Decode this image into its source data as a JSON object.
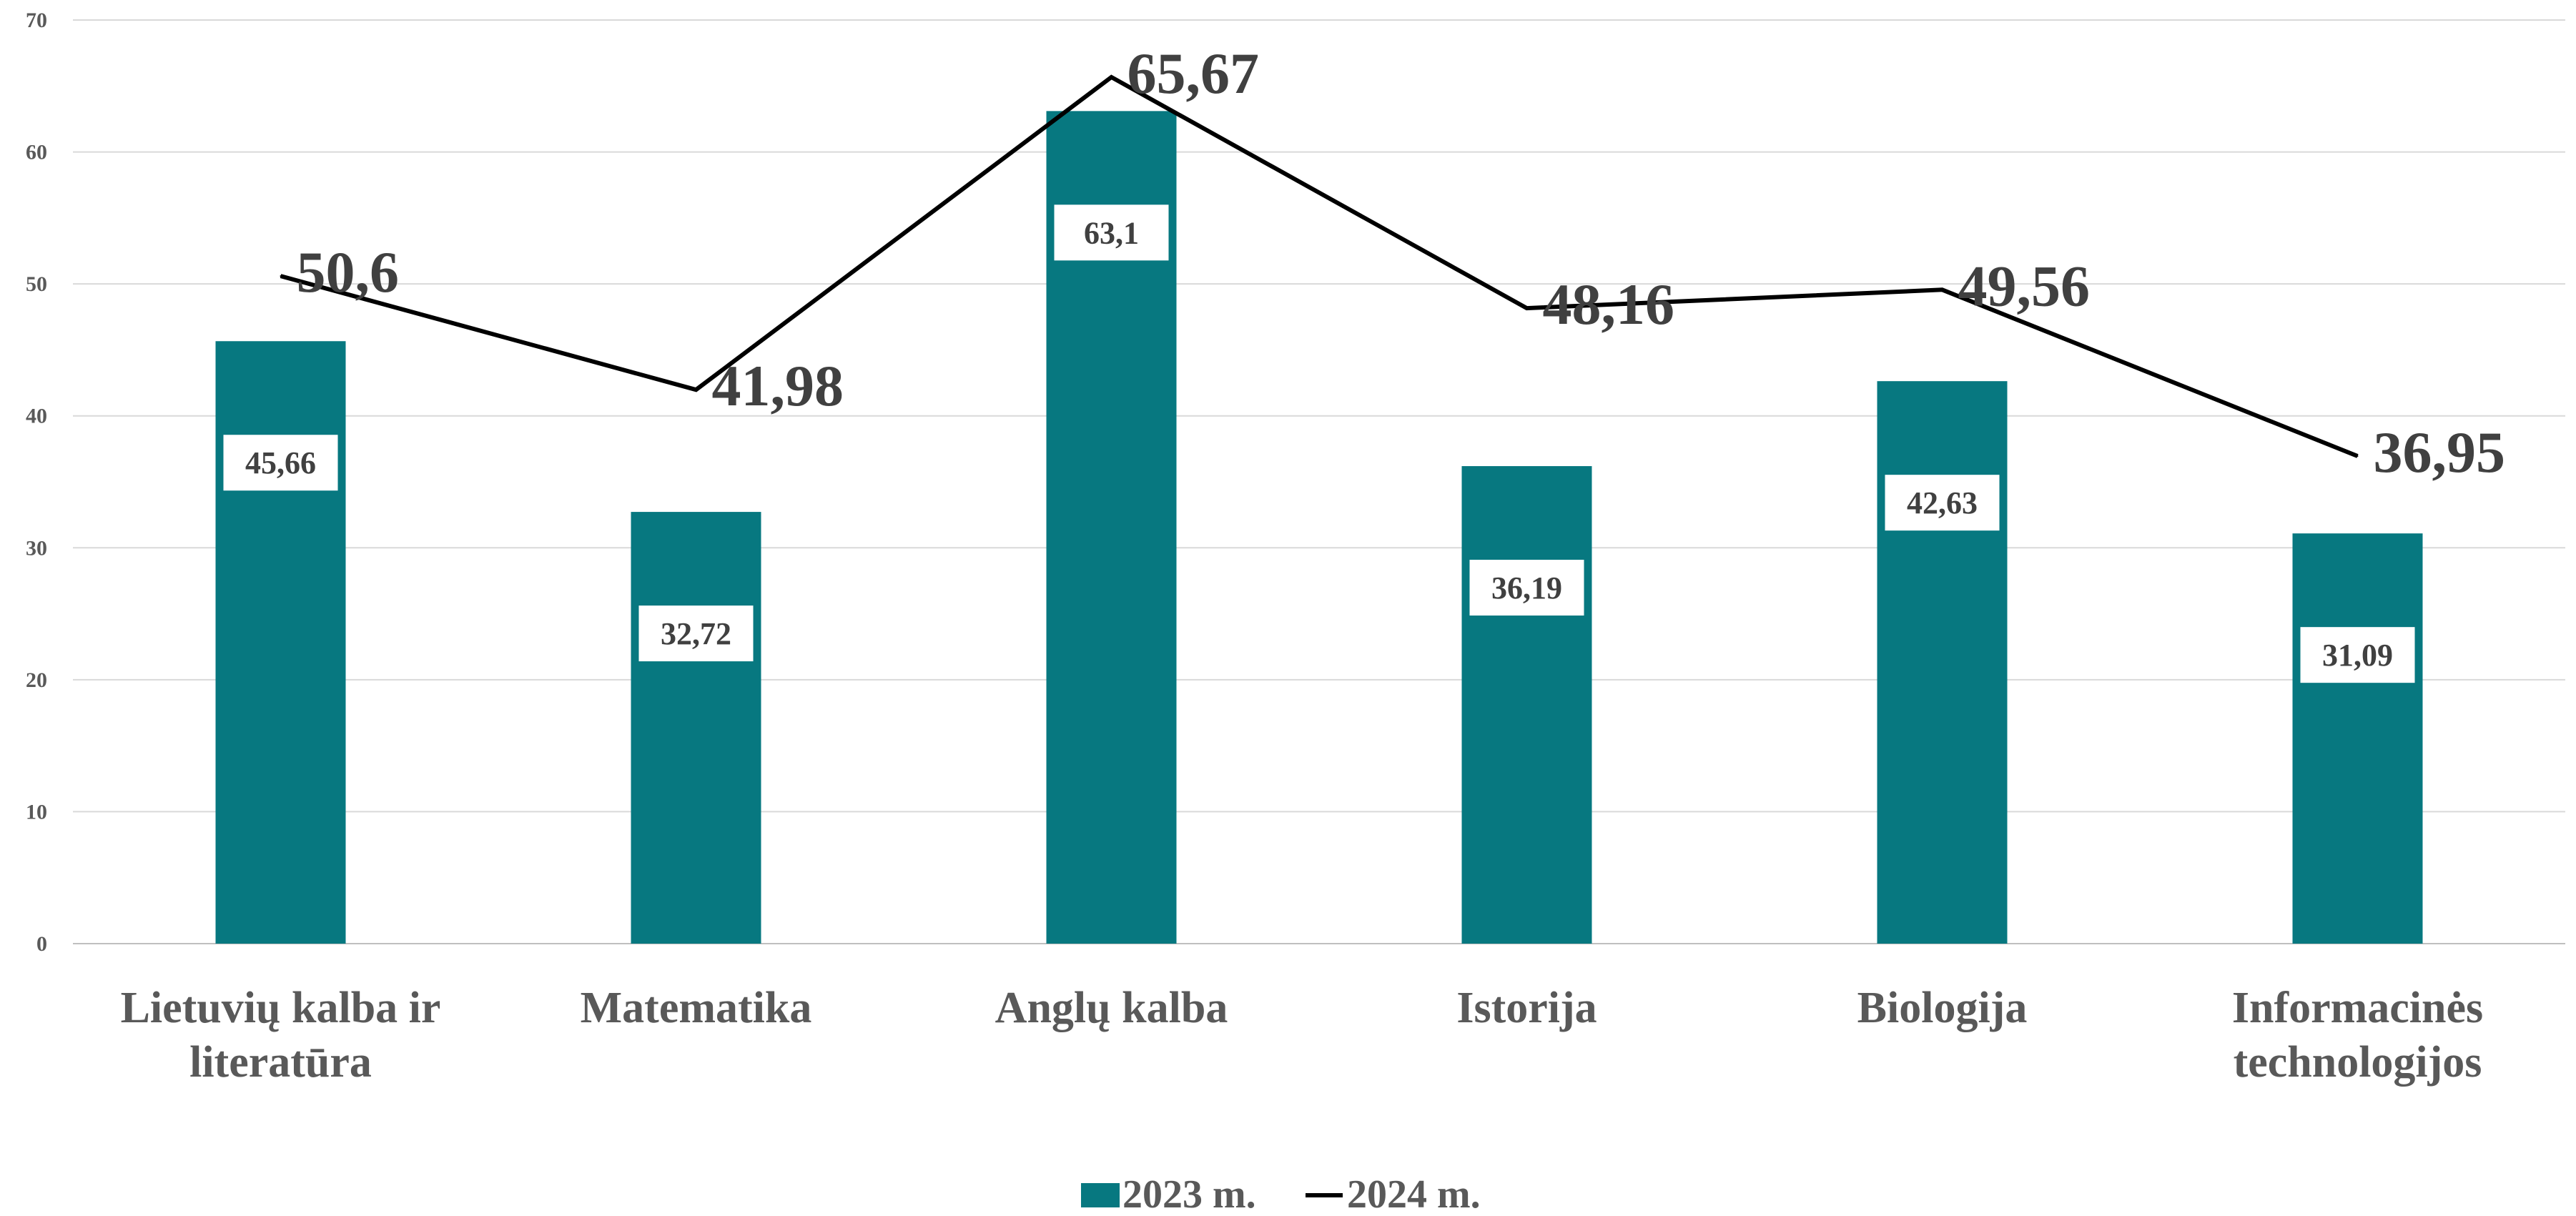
{
  "chart_data": {
    "type": "bar",
    "categories": [
      [
        "Lietuvių kalba ir",
        "literatūra"
      ],
      [
        "Matematika"
      ],
      [
        "Anglų kalba"
      ],
      [
        "Istorija"
      ],
      [
        "Biologija"
      ],
      [
        "Informacinės",
        "technologijos"
      ]
    ],
    "series": [
      {
        "name": "2023 m.",
        "type": "bar",
        "color": "#077880",
        "values": [
          45.66,
          32.72,
          63.1,
          36.19,
          42.63,
          31.09
        ],
        "labels": [
          "45,66",
          "32,72",
          "63,1",
          "36,19",
          "42,63",
          "31,09"
        ]
      },
      {
        "name": "2024 m.",
        "type": "line",
        "color": "#000000",
        "values": [
          50.6,
          41.98,
          65.67,
          48.16,
          49.56,
          36.95
        ],
        "labels": [
          "50,6",
          "41,98",
          "65,67",
          "48,16",
          "49,56",
          "36,95"
        ]
      }
    ],
    "ylim": [
      0,
      70
    ],
    "yticks": [
      0,
      10,
      20,
      30,
      40,
      50,
      60,
      70
    ],
    "grid": true,
    "legend": "bottom-center",
    "title": "",
    "xlabel": "",
    "ylabel": ""
  }
}
